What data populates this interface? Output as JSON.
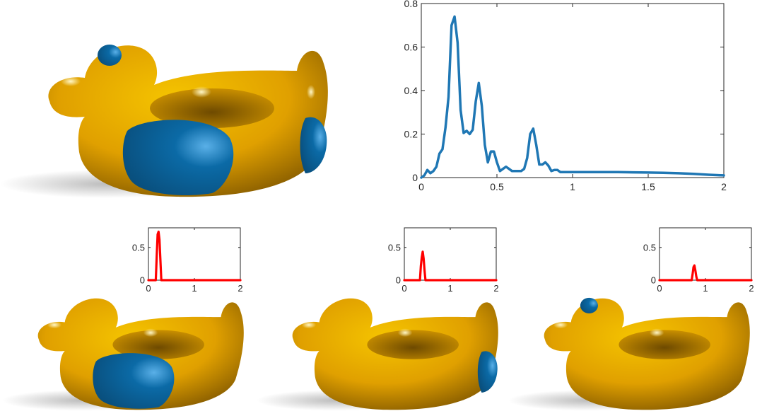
{
  "colors": {
    "duck_body": "#e0a000",
    "patch": "#0b6aa6",
    "main_series": "#1f77b4",
    "band_series": "#ff0000",
    "axis": "#262626"
  },
  "chart_data": [
    {
      "type": "line",
      "id": "main",
      "xlim": [
        0,
        2
      ],
      "ylim": [
        0,
        0.8
      ],
      "xticks": [
        0,
        0.5,
        1,
        1.5,
        2
      ],
      "xtick_labels": [
        "0",
        "0.5",
        "1",
        "1.5",
        "2"
      ],
      "yticks": [
        0,
        0.2,
        0.4,
        0.6,
        0.8
      ],
      "ytick_labels": [
        "0",
        "0.2",
        "0.4",
        "0.6",
        "0.8"
      ],
      "grid": false,
      "series": [
        {
          "color": "#1f77b4",
          "x": [
            0,
            0.02,
            0.04,
            0.06,
            0.08,
            0.1,
            0.12,
            0.14,
            0.16,
            0.18,
            0.2,
            0.22,
            0.24,
            0.26,
            0.28,
            0.3,
            0.32,
            0.34,
            0.36,
            0.38,
            0.4,
            0.42,
            0.44,
            0.46,
            0.48,
            0.5,
            0.52,
            0.54,
            0.56,
            0.58,
            0.6,
            0.62,
            0.64,
            0.66,
            0.68,
            0.7,
            0.72,
            0.74,
            0.76,
            0.78,
            0.8,
            0.82,
            0.84,
            0.86,
            0.88,
            0.9,
            0.92,
            0.94,
            0.96,
            0.98,
            1.0,
            1.02,
            1.04,
            1.06,
            1.08,
            1.1,
            1.2,
            1.3,
            1.4,
            1.5,
            1.6,
            1.7,
            1.8,
            1.9,
            2.0
          ],
          "y": [
            0.0,
            0.01,
            0.035,
            0.02,
            0.03,
            0.05,
            0.11,
            0.13,
            0.23,
            0.37,
            0.7,
            0.74,
            0.62,
            0.31,
            0.205,
            0.215,
            0.2,
            0.22,
            0.35,
            0.435,
            0.33,
            0.15,
            0.07,
            0.12,
            0.12,
            0.07,
            0.03,
            0.04,
            0.05,
            0.04,
            0.03,
            0.03,
            0.03,
            0.03,
            0.04,
            0.09,
            0.2,
            0.225,
            0.15,
            0.06,
            0.06,
            0.07,
            0.055,
            0.03,
            0.035,
            0.035,
            0.025,
            0.025,
            0.025,
            0.025,
            0.025,
            0.025,
            0.025,
            0.025,
            0.025,
            0.025,
            0.025,
            0.025,
            0.024,
            0.023,
            0.022,
            0.02,
            0.017,
            0.013,
            0.01
          ]
        }
      ]
    },
    {
      "type": "line",
      "id": "band1",
      "xlim": [
        0,
        2
      ],
      "ylim": [
        0,
        0.8
      ],
      "xticks": [
        0,
        1,
        2
      ],
      "xtick_labels": [
        "0",
        "1",
        "2"
      ],
      "yticks": [
        0,
        0.5
      ],
      "ytick_labels": [
        "0",
        "0.5"
      ],
      "grid": false,
      "series": [
        {
          "color": "#ff0000",
          "x": [
            0,
            0.16,
            0.18,
            0.2,
            0.22,
            0.24,
            0.26,
            0.28,
            2.0
          ],
          "y": [
            0,
            0,
            0.37,
            0.7,
            0.74,
            0.62,
            0.31,
            0,
            0
          ]
        }
      ]
    },
    {
      "type": "line",
      "id": "band2",
      "xlim": [
        0,
        2
      ],
      "ylim": [
        0,
        0.8
      ],
      "xticks": [
        0,
        1,
        2
      ],
      "xtick_labels": [
        "0",
        "1",
        "2"
      ],
      "yticks": [
        0,
        0.5
      ],
      "ytick_labels": [
        "0",
        "0.5"
      ],
      "grid": false,
      "series": [
        {
          "color": "#ff0000",
          "x": [
            0,
            0.34,
            0.36,
            0.38,
            0.4,
            0.42,
            0.44,
            0.46,
            2.0
          ],
          "y": [
            0,
            0,
            0.22,
            0.35,
            0.435,
            0.33,
            0.15,
            0,
            0
          ]
        }
      ]
    },
    {
      "type": "line",
      "id": "band3",
      "xlim": [
        0,
        2
      ],
      "ylim": [
        0,
        0.8
      ],
      "xticks": [
        0,
        1,
        2
      ],
      "xtick_labels": [
        "0",
        "1",
        "2"
      ],
      "yticks": [
        0,
        0.5
      ],
      "ytick_labels": [
        "0",
        "0.5"
      ],
      "grid": false,
      "series": [
        {
          "color": "#ff0000",
          "x": [
            0,
            0.7,
            0.72,
            0.74,
            0.76,
            0.78,
            0.8,
            0.82,
            2.0
          ],
          "y": [
            0,
            0,
            0.09,
            0.2,
            0.225,
            0.15,
            0.06,
            0,
            0
          ]
        }
      ]
    }
  ]
}
